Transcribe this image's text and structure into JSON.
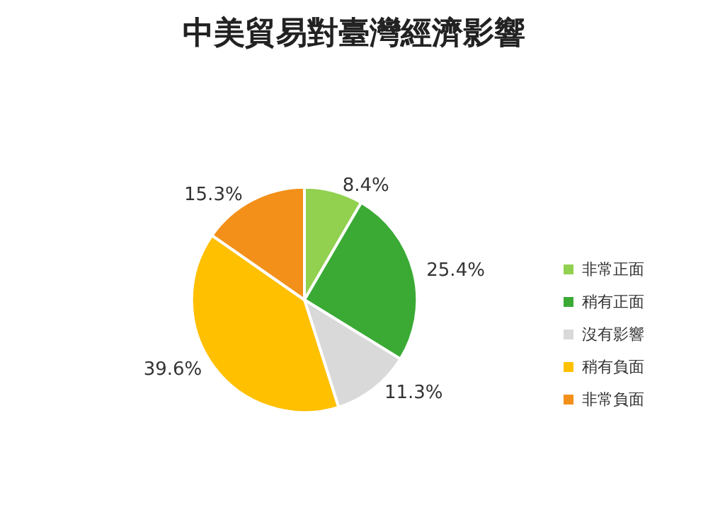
{
  "chart_data": {
    "type": "pie",
    "title": "中美貿易對臺灣經濟影響",
    "categories": [
      "非常正面",
      "稍有正面",
      "沒有影響",
      "稍有負面",
      "非常負面"
    ],
    "values": [
      8.4,
      25.4,
      11.3,
      39.6,
      15.3
    ],
    "value_labels": [
      "8.4%",
      "25.4%",
      "11.3%",
      "39.6%",
      "15.3%"
    ],
    "colors": [
      "#92d050",
      "#3aaa35",
      "#d9d9d9",
      "#ffc000",
      "#f39019"
    ],
    "legend": "right"
  }
}
